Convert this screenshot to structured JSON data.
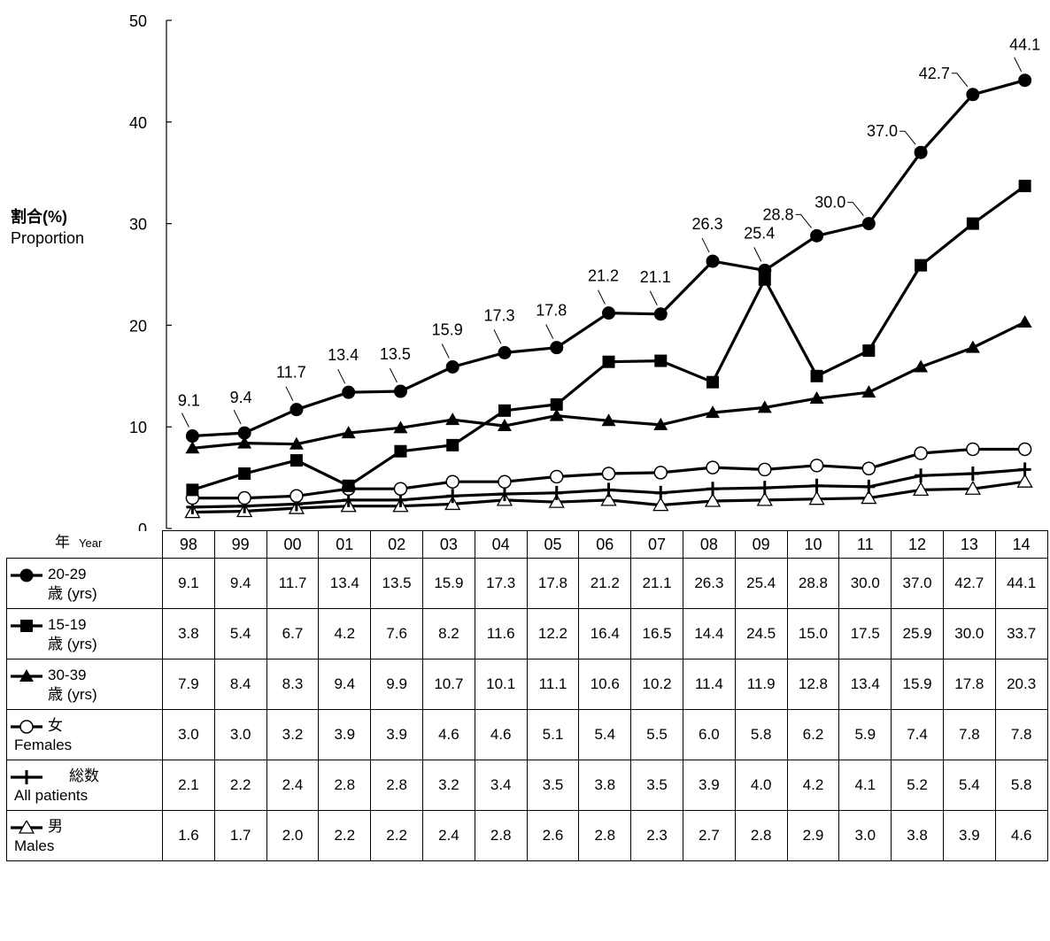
{
  "y_axis_label": {
    "jp": "割合(%)",
    "en": "Proportion"
  },
  "x_axis_label": {
    "jp": "年",
    "en": "Year"
  },
  "chart_data": {
    "type": "line",
    "ylim": [
      0,
      50
    ],
    "yticks": [
      0,
      10,
      20,
      30,
      40,
      50
    ],
    "categories": [
      "98",
      "99",
      "00",
      "01",
      "02",
      "03",
      "04",
      "05",
      "06",
      "07",
      "08",
      "09",
      "10",
      "11",
      "12",
      "13",
      "14"
    ],
    "series": [
      {
        "key": "s2029",
        "marker": "filled-circle",
        "name_line1": "20-29",
        "name_line2": "歳 (yrs)",
        "values": [
          9.1,
          9.4,
          11.7,
          13.4,
          13.5,
          15.9,
          17.3,
          17.8,
          21.2,
          21.1,
          26.3,
          25.4,
          28.8,
          30.0,
          37.0,
          42.7,
          44.1
        ],
        "labels": [
          "9.1",
          "9.4",
          "11.7",
          "13.4",
          "13.5",
          "15.9",
          "17.3",
          "17.8",
          "21.2",
          "21.1",
          "26.3",
          "25.4",
          "28.8",
          "30.0",
          "37.0",
          "42.7",
          "44.1"
        ]
      },
      {
        "key": "s1519",
        "marker": "filled-square",
        "name_line1": "15-19",
        "name_line2": "歳 (yrs)",
        "values": [
          3.8,
          5.4,
          6.7,
          4.2,
          7.6,
          8.2,
          11.6,
          12.2,
          16.4,
          16.5,
          14.4,
          24.5,
          15.0,
          17.5,
          25.9,
          30.0,
          33.7
        ]
      },
      {
        "key": "s3039",
        "marker": "filled-triangle",
        "name_line1": "30-39",
        "name_line2": "歳 (yrs)",
        "values": [
          7.9,
          8.4,
          8.3,
          9.4,
          9.9,
          10.7,
          10.1,
          11.1,
          10.6,
          10.2,
          11.4,
          11.9,
          12.8,
          13.4,
          15.9,
          17.8,
          20.3
        ]
      },
      {
        "key": "female",
        "marker": "open-circle",
        "name_line1": "女",
        "name_line2": "Females",
        "values": [
          3.0,
          3.0,
          3.2,
          3.9,
          3.9,
          4.6,
          4.6,
          5.1,
          5.4,
          5.5,
          6.0,
          5.8,
          6.2,
          5.9,
          7.4,
          7.8,
          7.8
        ]
      },
      {
        "key": "all",
        "marker": "plus",
        "name_line1": "総数",
        "name_line2": "All patients",
        "values": [
          2.1,
          2.2,
          2.4,
          2.8,
          2.8,
          3.2,
          3.4,
          3.5,
          3.8,
          3.5,
          3.9,
          4.0,
          4.2,
          4.1,
          5.2,
          5.4,
          5.8
        ]
      },
      {
        "key": "male",
        "marker": "open-triangle",
        "name_line1": "男",
        "name_line2": "Males",
        "values": [
          1.6,
          1.7,
          2.0,
          2.2,
          2.2,
          2.4,
          2.8,
          2.6,
          2.8,
          2.3,
          2.7,
          2.8,
          2.9,
          3.0,
          3.8,
          3.9,
          4.6
        ]
      }
    ]
  }
}
